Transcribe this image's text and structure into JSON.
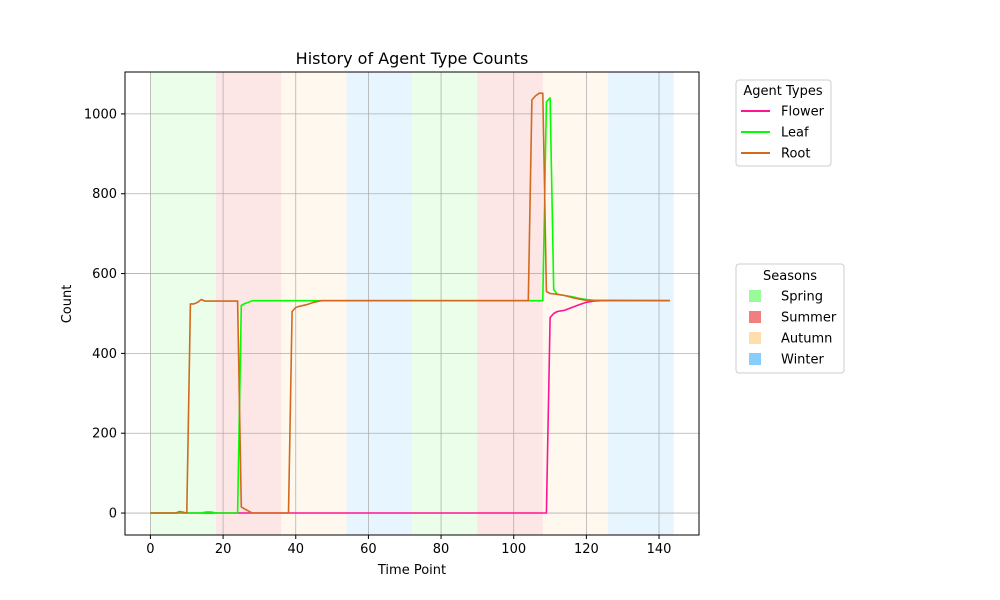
{
  "chart_data": {
    "type": "line",
    "title": "History of Agent Type Counts",
    "xlabel": "Time Point",
    "ylabel": "Count",
    "xlim": [
      -7,
      151
    ],
    "ylim": [
      -55,
      1105
    ],
    "xticks": [
      0,
      20,
      40,
      60,
      80,
      100,
      120,
      140
    ],
    "yticks": [
      0,
      200,
      400,
      600,
      800,
      1000
    ],
    "grid": true,
    "seasons": [
      {
        "name": "Spring",
        "color": "#98fb98",
        "ranges": [
          [
            0,
            18
          ],
          [
            72,
            90
          ]
        ]
      },
      {
        "name": "Summer",
        "color": "#f08080",
        "ranges": [
          [
            18,
            36
          ],
          [
            90,
            108
          ]
        ]
      },
      {
        "name": "Autumn",
        "color": "#ffdead",
        "ranges": [
          [
            36,
            54
          ],
          [
            108,
            126
          ]
        ]
      },
      {
        "name": "Winter",
        "color": "#87cefa",
        "ranges": [
          [
            54,
            72
          ],
          [
            126,
            144
          ]
        ]
      }
    ],
    "legend_agents": {
      "title": "Agent Types",
      "placement": "upper-right-outside"
    },
    "legend_seasons": {
      "title": "Seasons",
      "placement": "right-outside"
    },
    "series": [
      {
        "name": "Flower",
        "color": "#ff1493",
        "points": [
          [
            0,
            0
          ],
          [
            20,
            0
          ],
          [
            40,
            0
          ],
          [
            60,
            0
          ],
          [
            80,
            0
          ],
          [
            100,
            0
          ],
          [
            109,
            0
          ],
          [
            110,
            490
          ],
          [
            111,
            500
          ],
          [
            112,
            505
          ],
          [
            114,
            508
          ],
          [
            116,
            515
          ],
          [
            118,
            522
          ],
          [
            120,
            528
          ],
          [
            122,
            531
          ],
          [
            124,
            532
          ],
          [
            143,
            532
          ]
        ]
      },
      {
        "name": "Leaf",
        "color": "#00ff00",
        "points": [
          [
            0,
            0
          ],
          [
            14,
            0
          ],
          [
            15,
            2
          ],
          [
            16,
            3
          ],
          [
            17,
            2
          ],
          [
            18,
            0
          ],
          [
            24,
            0
          ],
          [
            25,
            520
          ],
          [
            26,
            525
          ],
          [
            27,
            528
          ],
          [
            28,
            532
          ],
          [
            40,
            532
          ],
          [
            60,
            532
          ],
          [
            80,
            532
          ],
          [
            100,
            532
          ],
          [
            108,
            532
          ],
          [
            109,
            1030
          ],
          [
            110,
            1040
          ],
          [
            111,
            560
          ],
          [
            112,
            548
          ],
          [
            114,
            545
          ],
          [
            116,
            542
          ],
          [
            118,
            538
          ],
          [
            120,
            535
          ],
          [
            122,
            533
          ],
          [
            143,
            532
          ]
        ]
      },
      {
        "name": "Root",
        "color": "#d2691e",
        "points": [
          [
            0,
            0
          ],
          [
            7,
            0
          ],
          [
            8,
            4
          ],
          [
            9,
            2
          ],
          [
            10,
            0
          ],
          [
            11,
            524
          ],
          [
            12,
            524
          ],
          [
            13,
            528
          ],
          [
            14,
            535
          ],
          [
            15,
            531
          ],
          [
            20,
            531
          ],
          [
            24,
            531
          ],
          [
            25,
            15
          ],
          [
            26,
            10
          ],
          [
            27,
            5
          ],
          [
            28,
            0
          ],
          [
            38,
            0
          ],
          [
            39,
            505
          ],
          [
            40,
            515
          ],
          [
            41,
            518
          ],
          [
            43,
            522
          ],
          [
            45,
            528
          ],
          [
            47,
            532
          ],
          [
            60,
            532
          ],
          [
            80,
            532
          ],
          [
            100,
            532
          ],
          [
            104,
            532
          ],
          [
            105,
            1035
          ],
          [
            106,
            1045
          ],
          [
            107,
            1052
          ],
          [
            108,
            1052
          ],
          [
            109,
            555
          ],
          [
            110,
            550
          ],
          [
            112,
            548
          ],
          [
            114,
            545
          ],
          [
            116,
            540
          ],
          [
            118,
            536
          ],
          [
            120,
            533
          ],
          [
            143,
            532
          ]
        ]
      }
    ]
  }
}
